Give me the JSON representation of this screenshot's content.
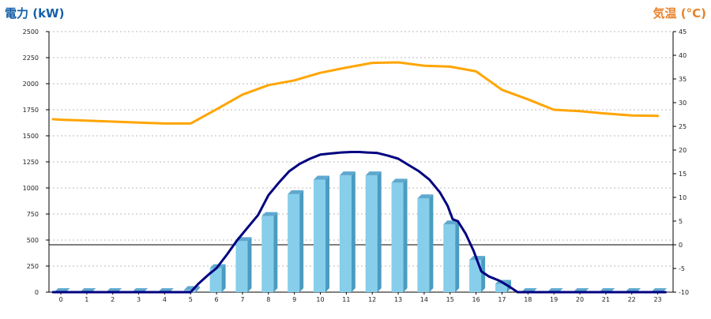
{
  "chart_data": {
    "type": "bar",
    "left_axis_title": "電力 (kW)",
    "right_axis_title": "気温 (°C)",
    "categories": [
      "0",
      "1",
      "2",
      "3",
      "4",
      "5",
      "6",
      "7",
      "8",
      "9",
      "10",
      "11",
      "12",
      "13",
      "14",
      "15",
      "16",
      "17",
      "18",
      "19",
      "20",
      "21",
      "22",
      "23"
    ],
    "ylim_left": [
      0,
      2500
    ],
    "yticks_left": [
      "0",
      "250",
      "500",
      "750",
      "1000",
      "1250",
      "1500",
      "1750",
      "2000",
      "2250",
      "2500"
    ],
    "ylim_right": [
      -10,
      45
    ],
    "yticks_right": [
      "-10",
      "-5",
      "0",
      "5",
      "10",
      "15",
      "20",
      "25",
      "30",
      "35",
      "40",
      "45"
    ],
    "grid": "dashed-horizontal",
    "zero_line_right_axis": 0,
    "series": [
      {
        "kind": "bar3d",
        "axis": "left",
        "color": "#87CEEB",
        "values": [
          0,
          0,
          0,
          0,
          0,
          20,
          230,
          490,
          730,
          940,
          1080,
          1120,
          1120,
          1050,
          900,
          650,
          310,
          80,
          0,
          0,
          0,
          0,
          0,
          0
        ]
      },
      {
        "kind": "line",
        "axis": "left",
        "color": "#000080",
        "points": [
          [
            -0.3,
            0
          ],
          [
            5.0,
            0
          ],
          [
            5.3,
            80
          ],
          [
            5.7,
            170
          ],
          [
            6.0,
            230
          ],
          [
            6.4,
            360
          ],
          [
            6.8,
            500
          ],
          [
            7.2,
            620
          ],
          [
            7.6,
            740
          ],
          [
            8.0,
            930
          ],
          [
            8.4,
            1050
          ],
          [
            8.8,
            1160
          ],
          [
            9.2,
            1230
          ],
          [
            9.6,
            1280
          ],
          [
            10.0,
            1320
          ],
          [
            10.4,
            1330
          ],
          [
            10.8,
            1340
          ],
          [
            11.2,
            1345
          ],
          [
            11.5,
            1345
          ],
          [
            11.8,
            1340
          ],
          [
            12.2,
            1335
          ],
          [
            12.6,
            1310
          ],
          [
            13.0,
            1280
          ],
          [
            13.4,
            1220
          ],
          [
            13.8,
            1160
          ],
          [
            14.2,
            1080
          ],
          [
            14.6,
            960
          ],
          [
            14.9,
            830
          ],
          [
            15.1,
            700
          ],
          [
            15.3,
            680
          ],
          [
            15.6,
            560
          ],
          [
            15.9,
            400
          ],
          [
            16.2,
            200
          ],
          [
            16.5,
            150
          ],
          [
            16.9,
            110
          ],
          [
            17.3,
            50
          ],
          [
            17.6,
            0
          ],
          [
            23.3,
            0
          ]
        ]
      },
      {
        "kind": "line",
        "axis": "right",
        "color": "#FFA500",
        "x": [
          -0.3,
          0,
          1,
          2,
          3,
          4,
          5,
          6,
          7,
          8,
          9,
          10,
          11,
          12,
          13,
          14,
          15,
          16,
          17,
          18,
          19,
          20,
          21,
          22,
          23
        ],
        "values": [
          26.5,
          26.4,
          26.2,
          26.0,
          25.8,
          25.6,
          25.6,
          28.6,
          31.7,
          33.7,
          34.7,
          36.3,
          37.4,
          38.4,
          38.5,
          37.8,
          37.6,
          36.6,
          32.7,
          30.7,
          28.5,
          28.2,
          27.7,
          27.3,
          27.2
        ]
      }
    ]
  }
}
